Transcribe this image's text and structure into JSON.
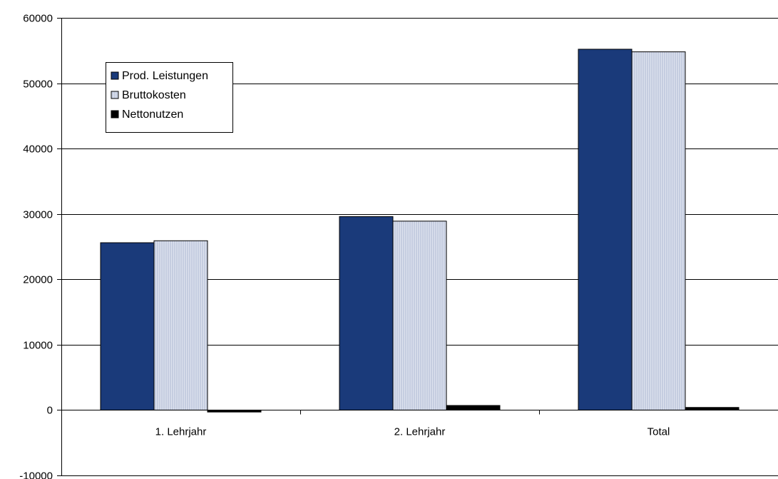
{
  "chart_data": {
    "type": "bar",
    "categories": [
      "1. Lehrjahr",
      "2. Lehrjahr",
      "Total"
    ],
    "series": [
      {
        "name": "Prod. Leistungen",
        "values": [
          25600,
          29600,
          55200
        ],
        "color": "#1a3a7a"
      },
      {
        "name": "Bruttokosten",
        "values": [
          25900,
          28900,
          54800
        ],
        "color": "#c5cde0"
      },
      {
        "name": "Nettonutzen",
        "values": [
          -300,
          700,
          400
        ],
        "color": "#000000"
      }
    ],
    "ylim": [
      -10000,
      60000
    ],
    "yticks": [
      -10000,
      0,
      10000,
      20000,
      30000,
      40000,
      50000,
      60000
    ],
    "grid": true,
    "legend_position": "top-left",
    "title": "",
    "xlabel": "",
    "ylabel": ""
  }
}
